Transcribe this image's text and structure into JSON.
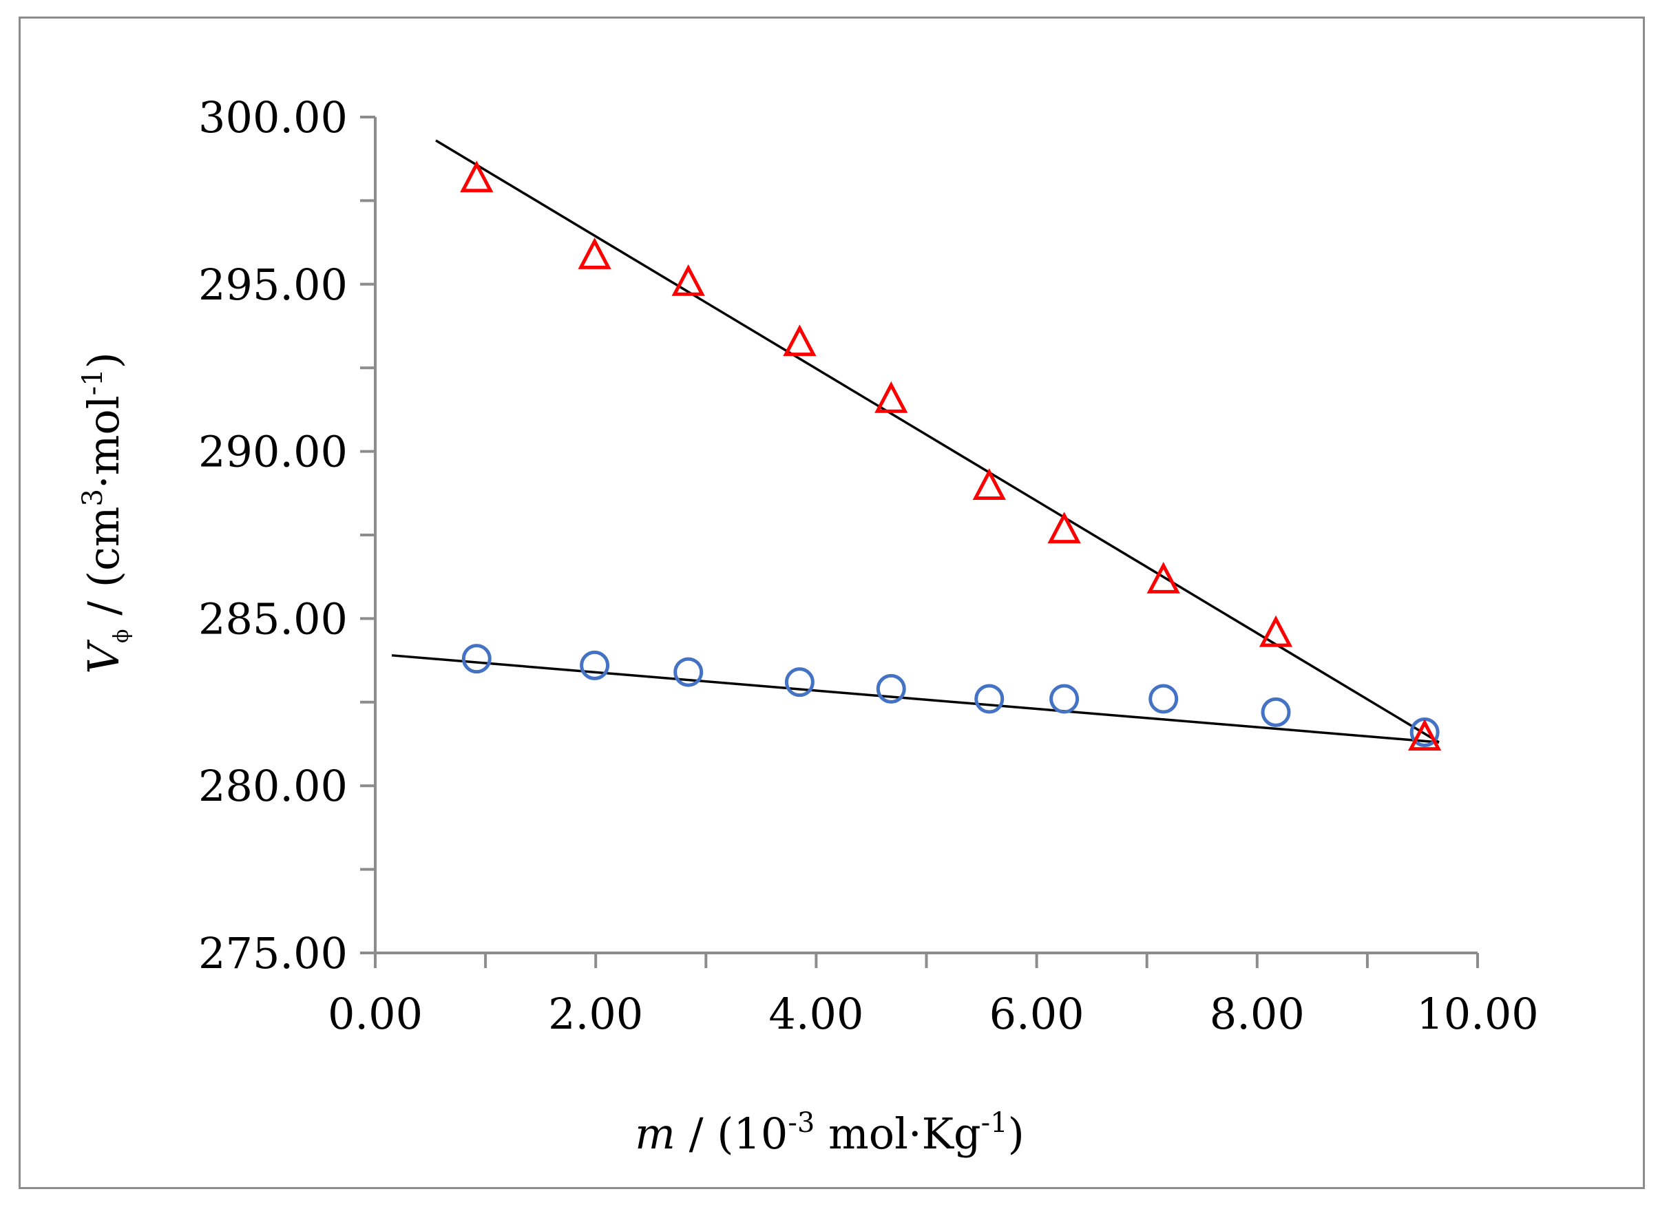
{
  "chart_data": {
    "type": "scatter",
    "title": "",
    "xlabel": {
      "var": "m",
      "slash": " / (10",
      "exp1": "-3",
      "unit": " mol·Kg",
      "exp2": "-1",
      "close": ")"
    },
    "ylabel": {
      "var": "V",
      "sub": "ϕ",
      "slash": " / (cm",
      "exp1": "3",
      "unit": "·mol",
      "exp2": "-1",
      "close": ")"
    },
    "xlim": [
      0,
      10
    ],
    "ylim": [
      275,
      300
    ],
    "x_ticks": [
      "0.00",
      "2.00",
      "4.00",
      "6.00",
      "8.00",
      "10.00"
    ],
    "y_ticks": [
      "275.00",
      "280.00",
      "285.00",
      "290.00",
      "295.00",
      "300.00"
    ],
    "x_minor_step": 1,
    "y_minor_step": 2.5,
    "series": [
      {
        "name": "triangles",
        "marker": "triangle",
        "color": "#ff0000",
        "x": [
          0.92,
          1.99,
          2.84,
          3.85,
          4.68,
          5.57,
          6.25,
          7.15,
          8.17,
          9.52
        ],
        "y": [
          298.1,
          295.8,
          295.0,
          293.2,
          291.5,
          288.9,
          287.6,
          286.1,
          284.5,
          281.4
        ],
        "fit": {
          "x": [
            0.55,
            9.65
          ],
          "y": [
            299.3,
            281.3
          ]
        }
      },
      {
        "name": "circles",
        "marker": "circle",
        "color": "#4472c4",
        "x": [
          0.92,
          1.99,
          2.84,
          3.85,
          4.68,
          5.57,
          6.25,
          7.15,
          8.17,
          9.52
        ],
        "y": [
          283.8,
          283.6,
          283.4,
          283.1,
          282.9,
          282.6,
          282.6,
          282.6,
          282.2,
          281.6
        ],
        "fit": {
          "x": [
            0.15,
            9.65
          ],
          "y": [
            283.9,
            281.3
          ]
        }
      }
    ],
    "line_color": "#000000",
    "axis_color": "#8c8c8c"
  }
}
